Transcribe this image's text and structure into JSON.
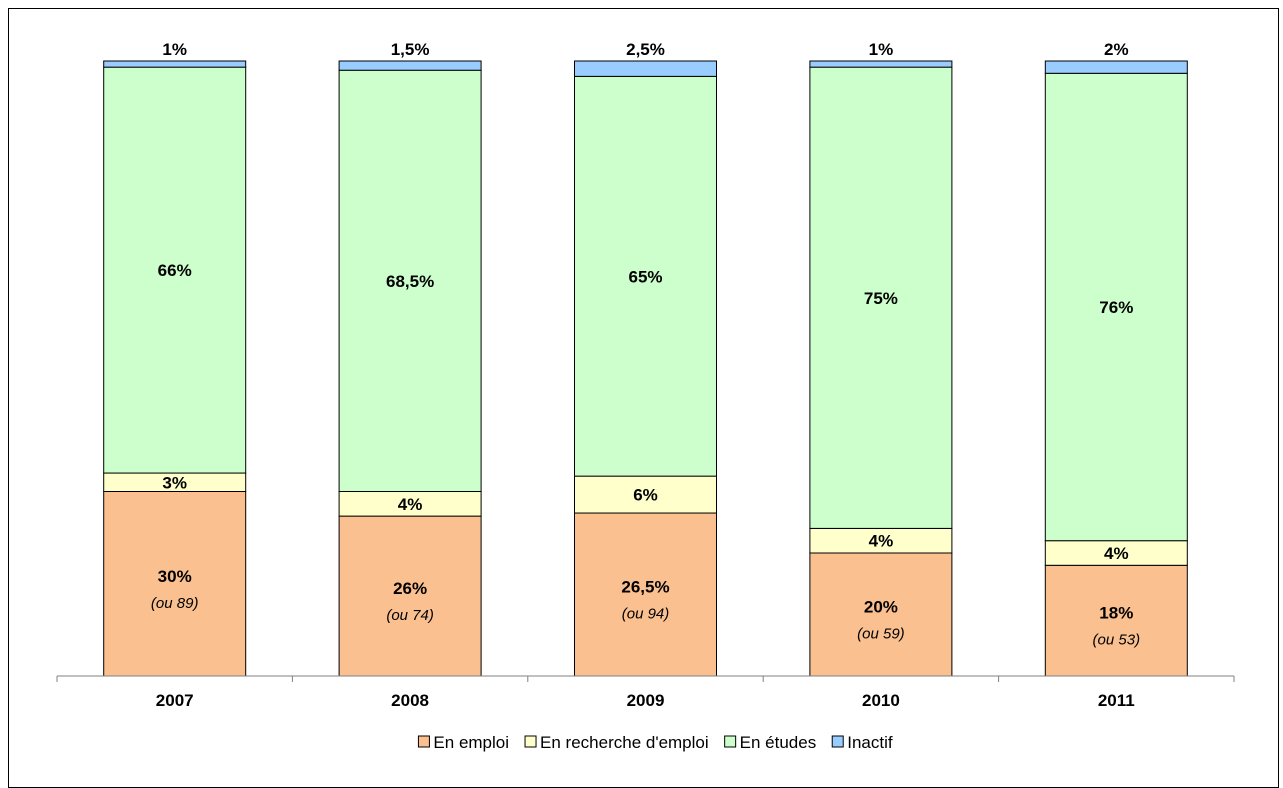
{
  "chart_data": {
    "type": "bar",
    "stacked": true,
    "normalized": true,
    "categories": [
      "2007",
      "2008",
      "2009",
      "2010",
      "2011"
    ],
    "series": [
      {
        "name": "En emploi",
        "color": "#fac090",
        "values": [
          30,
          26,
          26.5,
          20,
          18
        ],
        "labels": [
          "30%",
          "26%",
          "26,5%",
          "20%",
          "18%"
        ],
        "sublabels": [
          "(ou 89)",
          "(ou 74)",
          "(ou 94)",
          "(ou 59)",
          "(ou 53)"
        ]
      },
      {
        "name": "En recherche d'emploi",
        "color": "#ffffcc",
        "values": [
          3,
          4,
          6,
          4,
          4
        ],
        "labels": [
          "3%",
          "4%",
          "6%",
          "4%",
          "4%"
        ]
      },
      {
        "name": "En études",
        "color": "#ccffcc",
        "values": [
          66,
          68.5,
          65,
          75,
          76
        ],
        "labels": [
          "66%",
          "68,5%",
          "65%",
          "75%",
          "76%"
        ]
      },
      {
        "name": "Inactif",
        "color": "#99ccff",
        "values": [
          1,
          1.5,
          2.5,
          1,
          2
        ],
        "labels": [
          "1%",
          "1,5%",
          "2,5%",
          "1%",
          "2%"
        ]
      }
    ],
    "legend_position": "bottom",
    "grid": false
  }
}
